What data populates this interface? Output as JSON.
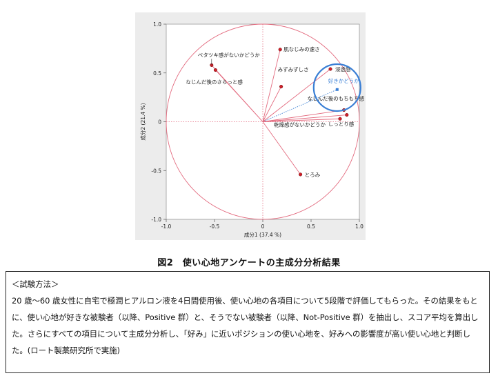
{
  "chart_data": {
    "type": "scatter",
    "subtype": "pca-biplot",
    "xlabel": "成分1 (37.4 %)",
    "ylabel": "成分2 (21.4 %)",
    "xlim": [
      -1.0,
      1.0
    ],
    "ylim": [
      -1.0,
      1.0
    ],
    "xticks": [
      "-1.0",
      "-0.5",
      "0",
      "0.5",
      "1.0"
    ],
    "yticks": [
      "1.0",
      "0.5",
      "0",
      "-0.5",
      "-1.0"
    ],
    "unit_circle": true,
    "grid": false,
    "points": [
      {
        "label": "ベタツキ感がないかどうか",
        "x": -0.53,
        "y": 0.58
      },
      {
        "label": "なじんだ後のさらっと感",
        "x": -0.49,
        "y": 0.53
      },
      {
        "label": "肌なじみの速さ",
        "x": 0.18,
        "y": 0.74
      },
      {
        "label": "みずみずしさ",
        "x": 0.19,
        "y": 0.36
      },
      {
        "label": "浸透感",
        "x": 0.7,
        "y": 0.54
      },
      {
        "label": "なじんだ後のもちもち感",
        "x": 0.84,
        "y": 0.12
      },
      {
        "label": "乾燥感がないかどうか",
        "x": 0.8,
        "y": 0.03
      },
      {
        "label": "しっとり感",
        "x": 0.87,
        "y": 0.07
      },
      {
        "label": "とろみ",
        "x": 0.39,
        "y": -0.54
      }
    ],
    "highlight_point": {
      "label": "好きかどうか",
      "x": 0.77,
      "y": 0.33
    },
    "colors": {
      "vector_line": "#e36b7f",
      "point_fill": "#d0202a",
      "highlight_blue": "#3a7fd5",
      "circle_stroke": "#e36b7f",
      "zero_line": "#e36b7f"
    }
  },
  "caption": "図2　使い心地アンケートの主成分分析結果",
  "method": {
    "heading": "＜試験方法＞",
    "body": "20 歳～60 歳女性に自宅で極潤ヒアルロン液を4日間使用後、使い心地の各項目について5段階で評価してもらった。その結果をもとに、使い心地が好きな被験者（以降、Positive 群）と、そうでない被験者（以降、Not-Positive 群）を抽出し、スコア平均を算出した。さらにすべての項目について主成分分析し、「好み」に近いポジションの使い心地を、好みへの影響度が高い使い心地と判断した。(ロート製薬研究所で実施)"
  }
}
